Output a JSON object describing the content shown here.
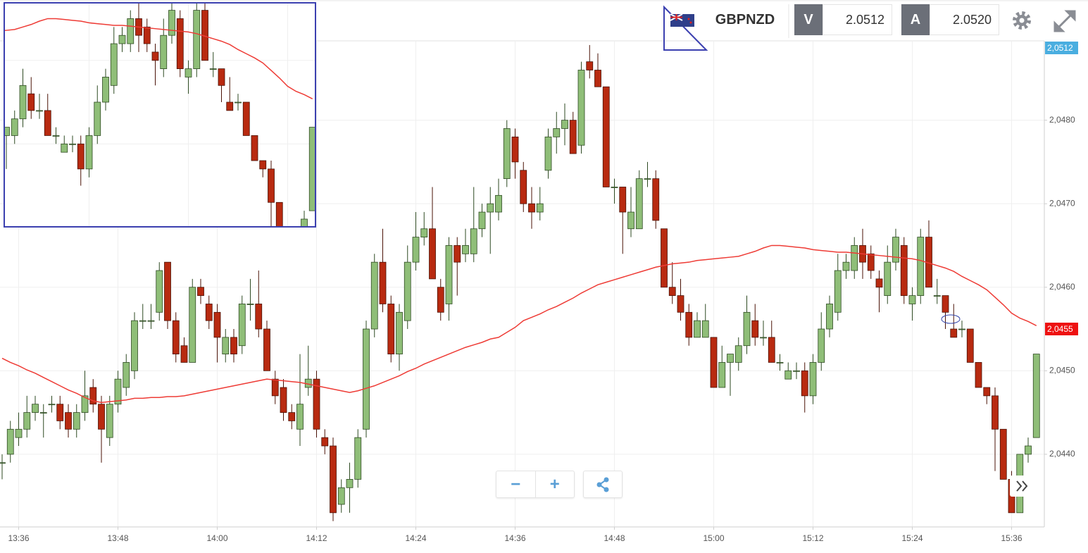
{
  "header": {
    "symbol": "GBPNZD",
    "bid_label": "V",
    "bid": "2.0512",
    "ask_label": "A",
    "ask": "2.0520"
  },
  "chart_data": {
    "type": "candlestick",
    "categories": [
      null,
      null,
      "13:36",
      null,
      null,
      null,
      null,
      null,
      null,
      null,
      null,
      null,
      null,
      null,
      "13:48",
      null,
      null,
      null,
      null,
      null,
      null,
      null,
      null,
      null,
      null,
      null,
      "14:00",
      null,
      null,
      null,
      null,
      null,
      null,
      null,
      null,
      null,
      null,
      null,
      "14:12",
      null,
      null,
      null,
      null,
      null,
      null,
      null,
      null,
      null,
      null,
      null,
      "14:24",
      null,
      null,
      null,
      null,
      null,
      null,
      null,
      null,
      null,
      null,
      null,
      "14:36",
      null,
      null,
      null,
      null,
      null,
      null,
      null,
      null,
      null,
      null,
      null,
      "14:48",
      null,
      null,
      null,
      null,
      null,
      null,
      null,
      null,
      null,
      null,
      null,
      "15:00",
      null,
      null,
      null,
      null,
      null,
      null,
      null,
      null,
      null,
      null,
      null,
      "15:12",
      null,
      null,
      null,
      null,
      null,
      null,
      null,
      null,
      null,
      null,
      null,
      "15:24",
      null,
      null,
      null,
      null,
      null,
      null,
      null,
      null,
      null,
      null,
      null,
      "15:36",
      null,
      null,
      null
    ],
    "open": [
      2.0439,
      2.044,
      2.0442,
      2.0443,
      2.0445,
      2.0445,
      2.0446,
      2.0446,
      2.0445,
      2.0443,
      2.0445,
      2.0448,
      2.0446,
      2.0442,
      2.0446,
      2.0448,
      2.045,
      2.0456,
      2.0456,
      2.0457,
      2.0463,
      2.0456,
      2.0453,
      2.0451,
      2.046,
      2.0458,
      2.0457,
      2.0452,
      2.0454,
      2.0453,
      2.0458,
      2.0458,
      2.0455,
      2.0449,
      2.0448,
      2.0445,
      2.0443,
      2.0448,
      2.0449,
      2.0442,
      2.0441,
      2.0434,
      2.0436,
      2.0437,
      2.0443,
      2.0455,
      2.0463,
      2.0458,
      2.0452,
      2.0456,
      2.0463,
      2.0466,
      2.0467,
      2.046,
      2.0458,
      2.0465,
      2.0464,
      2.0464,
      2.0467,
      2.0469,
      2.0469,
      2.0473,
      2.0478,
      2.0474,
      2.047,
      2.0469,
      2.0474,
      2.0478,
      2.0479,
      2.048,
      2.0477,
      2.0487,
      2.0486,
      2.0484,
      2.0472,
      2.0472,
      2.0467,
      2.0467,
      2.0473,
      2.0473,
      2.0467,
      2.046,
      2.0459,
      2.0457,
      2.0454,
      2.0454,
      2.0454,
      2.0448,
      2.0451,
      2.0451,
      2.0453,
      2.0456,
      2.0454,
      2.0454,
      2.0451,
      2.0449,
      2.045,
      2.045,
      2.0447,
      2.0451,
      2.0455,
      2.0457,
      2.0462,
      2.0462,
      2.0465,
      2.0464,
      2.0461,
      2.0459,
      2.0463,
      2.0465,
      2.0458,
      2.0459,
      2.0466,
      2.0459,
      2.0459,
      2.0455,
      2.0455,
      2.0455,
      2.0451,
      2.0448,
      2.0447,
      2.0443,
      2.0437,
      2.0433,
      2.044,
      2.0442
    ],
    "high": [
      2.044,
      2.0444,
      2.0445,
      2.0447,
      2.0447,
      2.0446,
      2.0447,
      2.0447,
      2.0446,
      2.0446,
      2.045,
      2.0449,
      2.0447,
      2.0447,
      2.045,
      2.0452,
      2.0457,
      2.0458,
      2.0458,
      2.0463,
      2.0463,
      2.0457,
      2.0454,
      2.0461,
      2.0461,
      2.0459,
      2.0458,
      2.0455,
      2.0455,
      2.0459,
      2.0461,
      2.0462,
      2.0456,
      2.045,
      2.0449,
      2.0446,
      2.0452,
      2.0453,
      2.045,
      2.0443,
      2.0442,
      2.0437,
      2.0439,
      2.0443,
      2.0456,
      2.0464,
      2.0467,
      2.0459,
      2.0458,
      2.0465,
      2.0469,
      2.0469,
      2.0472,
      2.0461,
      2.0466,
      2.0466,
      2.0467,
      2.0472,
      2.047,
      2.0472,
      2.0473,
      2.048,
      2.0479,
      2.0475,
      2.0472,
      2.0472,
      2.0479,
      2.0481,
      2.0482,
      2.0481,
      2.0487,
      2.0489,
      2.0488,
      2.0484,
      2.0473,
      2.0472,
      2.0472,
      2.0474,
      2.0475,
      2.0474,
      2.0467,
      2.0463,
      2.0461,
      2.0458,
      2.0457,
      2.0458,
      2.0454,
      2.0453,
      2.0452,
      2.0454,
      2.0459,
      2.0458,
      2.0456,
      2.0456,
      2.0452,
      2.0451,
      2.0451,
      2.0451,
      2.0452,
      2.0457,
      2.0459,
      2.0464,
      2.0464,
      2.0466,
      2.0467,
      2.0465,
      2.0462,
      2.0465,
      2.0467,
      2.0466,
      2.046,
      2.0467,
      2.0468,
      2.0461,
      2.0459,
      2.0458,
      2.0456,
      2.0455,
      2.0451,
      2.0448,
      2.0448,
      2.0443,
      2.0438,
      2.044,
      2.0442,
      2.0452
    ],
    "low": [
      2.0437,
      2.0439,
      2.0441,
      2.0442,
      2.0444,
      2.0442,
      2.0445,
      2.0443,
      2.0442,
      2.0442,
      2.0444,
      2.0445,
      2.0439,
      2.0441,
      2.0445,
      2.0447,
      2.0449,
      2.0455,
      2.0455,
      2.0456,
      2.0455,
      2.0451,
      2.0451,
      2.0451,
      2.0458,
      2.0455,
      2.0451,
      2.0451,
      2.0451,
      2.0452,
      2.0456,
      2.0454,
      2.045,
      2.0446,
      2.0444,
      2.0443,
      2.0441,
      2.0447,
      2.0442,
      2.044,
      2.0432,
      2.0433,
      2.0433,
      2.0436,
      2.0442,
      2.0454,
      2.0457,
      2.0451,
      2.045,
      2.0455,
      2.0462,
      2.0465,
      2.0461,
      2.0456,
      2.0456,
      2.0459,
      2.0463,
      2.0463,
      2.0466,
      2.0464,
      2.0468,
      2.0472,
      2.0473,
      2.0469,
      2.0467,
      2.0468,
      2.0473,
      2.0476,
      2.0477,
      2.0476,
      2.0476,
      2.0485,
      2.0484,
      2.0472,
      2.047,
      2.0464,
      2.0466,
      2.0467,
      2.0472,
      2.0467,
      2.046,
      2.0458,
      2.0456,
      2.0453,
      2.0454,
      2.0454,
      2.0448,
      2.0448,
      2.0447,
      2.045,
      2.0452,
      2.0453,
      2.0453,
      2.0451,
      2.045,
      2.0449,
      2.0449,
      2.0445,
      2.0446,
      2.045,
      2.0454,
      2.0456,
      2.0461,
      2.0461,
      2.0461,
      2.0461,
      2.0457,
      2.0458,
      2.0462,
      2.0458,
      2.0456,
      2.0458,
      2.046,
      2.0458,
      2.0455,
      2.0454,
      2.0454,
      2.0451,
      2.0448,
      2.0446,
      2.0438,
      2.0437,
      2.0433,
      2.0433,
      2.0439,
      2.0442
    ],
    "close": [
      2.0439,
      2.0443,
      2.0443,
      2.0445,
      2.0446,
      2.0445,
      2.0446,
      2.0444,
      2.0443,
      2.0445,
      2.0447,
      2.0446,
      2.0443,
      2.0446,
      2.0449,
      2.0451,
      2.0456,
      2.0456,
      2.0456,
      2.0462,
      2.0456,
      2.0452,
      2.0451,
      2.046,
      2.0459,
      2.0456,
      2.0454,
      2.0454,
      2.0452,
      2.0458,
      2.0458,
      2.0455,
      2.045,
      2.0447,
      2.0445,
      2.0444,
      2.0446,
      2.0449,
      2.0443,
      2.0441,
      2.0433,
      2.0436,
      2.0437,
      2.0442,
      2.0455,
      2.0463,
      2.0458,
      2.0452,
      2.0457,
      2.0463,
      2.0466,
      2.0467,
      2.0461,
      2.0457,
      2.0465,
      2.0463,
      2.0465,
      2.0467,
      2.0469,
      2.047,
      2.0471,
      2.0479,
      2.0475,
      2.047,
      2.0469,
      2.047,
      2.0478,
      2.0479,
      2.048,
      2.0476,
      2.0486,
      2.0486,
      2.0484,
      2.0472,
      2.0472,
      2.0469,
      2.0469,
      2.0473,
      2.0473,
      2.0468,
      2.046,
      2.0459,
      2.0457,
      2.0454,
      2.0456,
      2.0456,
      2.0448,
      2.0451,
      2.0452,
      2.0453,
      2.0457,
      2.0454,
      2.0454,
      2.0451,
      2.0451,
      2.045,
      2.045,
      2.0447,
      2.0451,
      2.0455,
      2.0458,
      2.0462,
      2.0463,
      2.0465,
      2.0463,
      2.0462,
      2.046,
      2.0463,
      2.0466,
      2.0459,
      2.0459,
      2.0466,
      2.046,
      2.0459,
      2.0457,
      2.0454,
      2.0455,
      2.0451,
      2.0448,
      2.0447,
      2.0443,
      2.0437,
      2.0433,
      2.044,
      2.0441,
      2.0452
    ],
    "up_color": "#8fbe78",
    "down_color": "#b82a10",
    "moving_average": {
      "color": "#ee3b35",
      "values": [
        2.04515,
        2.0451,
        2.04506,
        2.04501,
        2.04497,
        2.04492,
        2.04487,
        2.04482,
        2.04477,
        2.04473,
        2.04468,
        2.04464,
        2.04462,
        2.04463,
        2.04464,
        2.04465,
        2.04467,
        2.04467,
        2.04468,
        2.04468,
        2.04469,
        2.04469,
        2.0447,
        2.04472,
        2.04474,
        2.04476,
        2.04478,
        2.0448,
        2.04482,
        2.04484,
        2.04486,
        2.04488,
        2.0449,
        2.04489,
        2.04488,
        2.04487,
        2.04486,
        2.04484,
        2.04482,
        2.0448,
        2.04478,
        2.04476,
        2.04474,
        2.04476,
        2.04479,
        2.04482,
        2.04486,
        2.0449,
        2.04494,
        2.04499,
        2.04503,
        2.04508,
        2.04512,
        2.04516,
        2.0452,
        2.04524,
        2.04528,
        2.04531,
        2.04534,
        2.04538,
        2.0454,
        2.04546,
        2.04552,
        2.0456,
        2.04564,
        2.04568,
        2.04573,
        2.04577,
        2.04582,
        2.04587,
        2.04593,
        2.04598,
        2.04603,
        2.04606,
        2.04609,
        2.04612,
        2.04615,
        2.04618,
        2.04621,
        2.04624,
        2.04626,
        2.04628,
        2.04629,
        2.0463,
        2.04632,
        2.04633,
        2.04634,
        2.04635,
        2.04636,
        2.04637,
        2.0464,
        2.04643,
        2.04647,
        2.0465,
        2.0465,
        2.04649,
        2.04648,
        2.04647,
        2.04645,
        2.04644,
        2.04643,
        2.04642,
        2.04642,
        2.04641,
        2.0464,
        2.04639,
        2.04638,
        2.04637,
        2.04636,
        2.04635,
        2.04634,
        2.04632,
        2.04629,
        2.04626,
        2.04623,
        2.04619,
        2.04613,
        2.04608,
        2.04603,
        2.04597,
        2.04588,
        2.04579,
        2.04569,
        2.04563,
        2.04559,
        2.04554
      ]
    },
    "ylim": [
      2.04313,
      2.04895
    ],
    "yticks": [
      {
        "value": 2.044,
        "label": "2,0440"
      },
      {
        "value": 2.045,
        "label": "2,0450"
      },
      {
        "value": 2.046,
        "label": "2,0460"
      },
      {
        "value": 2.047,
        "label": "2,0470"
      },
      {
        "value": 2.048,
        "label": "2,0480"
      }
    ],
    "grid": true,
    "price_labels": [
      {
        "value": 2.0512,
        "label": "2,0512",
        "color": "#4aaee0"
      },
      {
        "value": 2.0455,
        "label": "2,0455",
        "color": "#ee1111"
      }
    ]
  }
}
